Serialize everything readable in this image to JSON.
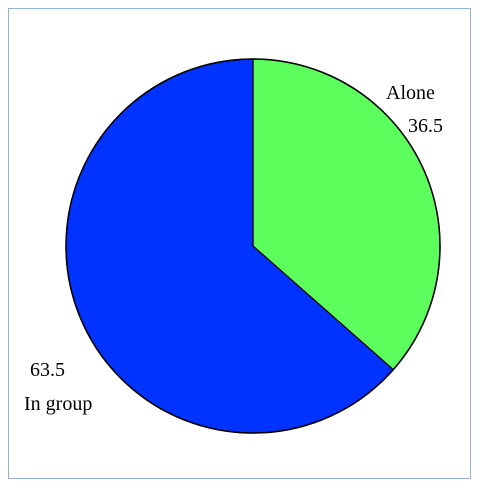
{
  "chart_data": {
    "type": "pie",
    "title": "",
    "slices": [
      {
        "label": "Alone",
        "value": 36.5,
        "value_text": "36.5",
        "color": "#5cff5c"
      },
      {
        "label": "In group",
        "value": 63.5,
        "value_text": "63.5",
        "color": "#0033ff"
      }
    ],
    "start": "12 o'clock",
    "direction": "clockwise",
    "legend": "none",
    "labels_position": "outside"
  }
}
